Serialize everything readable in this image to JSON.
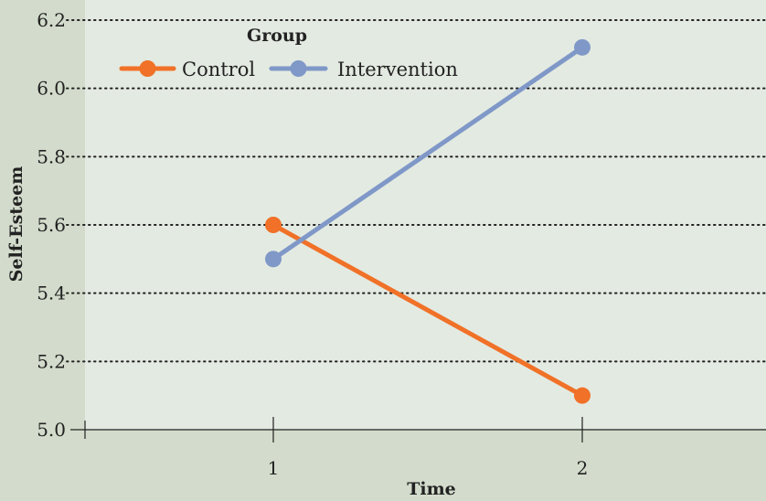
{
  "chart_data": {
    "type": "line",
    "title": "",
    "xlabel": "Time",
    "ylabel": "Self-Esteem",
    "x": [
      1,
      2
    ],
    "xticks": [
      "1",
      "2"
    ],
    "xlim": [
      0.4,
      2.6
    ],
    "ylim": [
      5.0,
      6.2
    ],
    "yticks": [
      "5.0",
      "5.2",
      "5.4",
      "5.6",
      "5.8",
      "6.0",
      "6.2"
    ],
    "grid": "horizontal dotted",
    "legend": {
      "title": "Group",
      "placement": "top-left"
    },
    "series": [
      {
        "name": "Control",
        "values": [
          5.6,
          5.1
        ],
        "color": "#f07127"
      },
      {
        "name": "Intervention",
        "values": [
          5.5,
          6.12
        ],
        "color": "#7f98c8"
      }
    ]
  },
  "colors": {
    "background": "#d3dccc",
    "panel": "#e3eae1",
    "grid": "#222222"
  }
}
